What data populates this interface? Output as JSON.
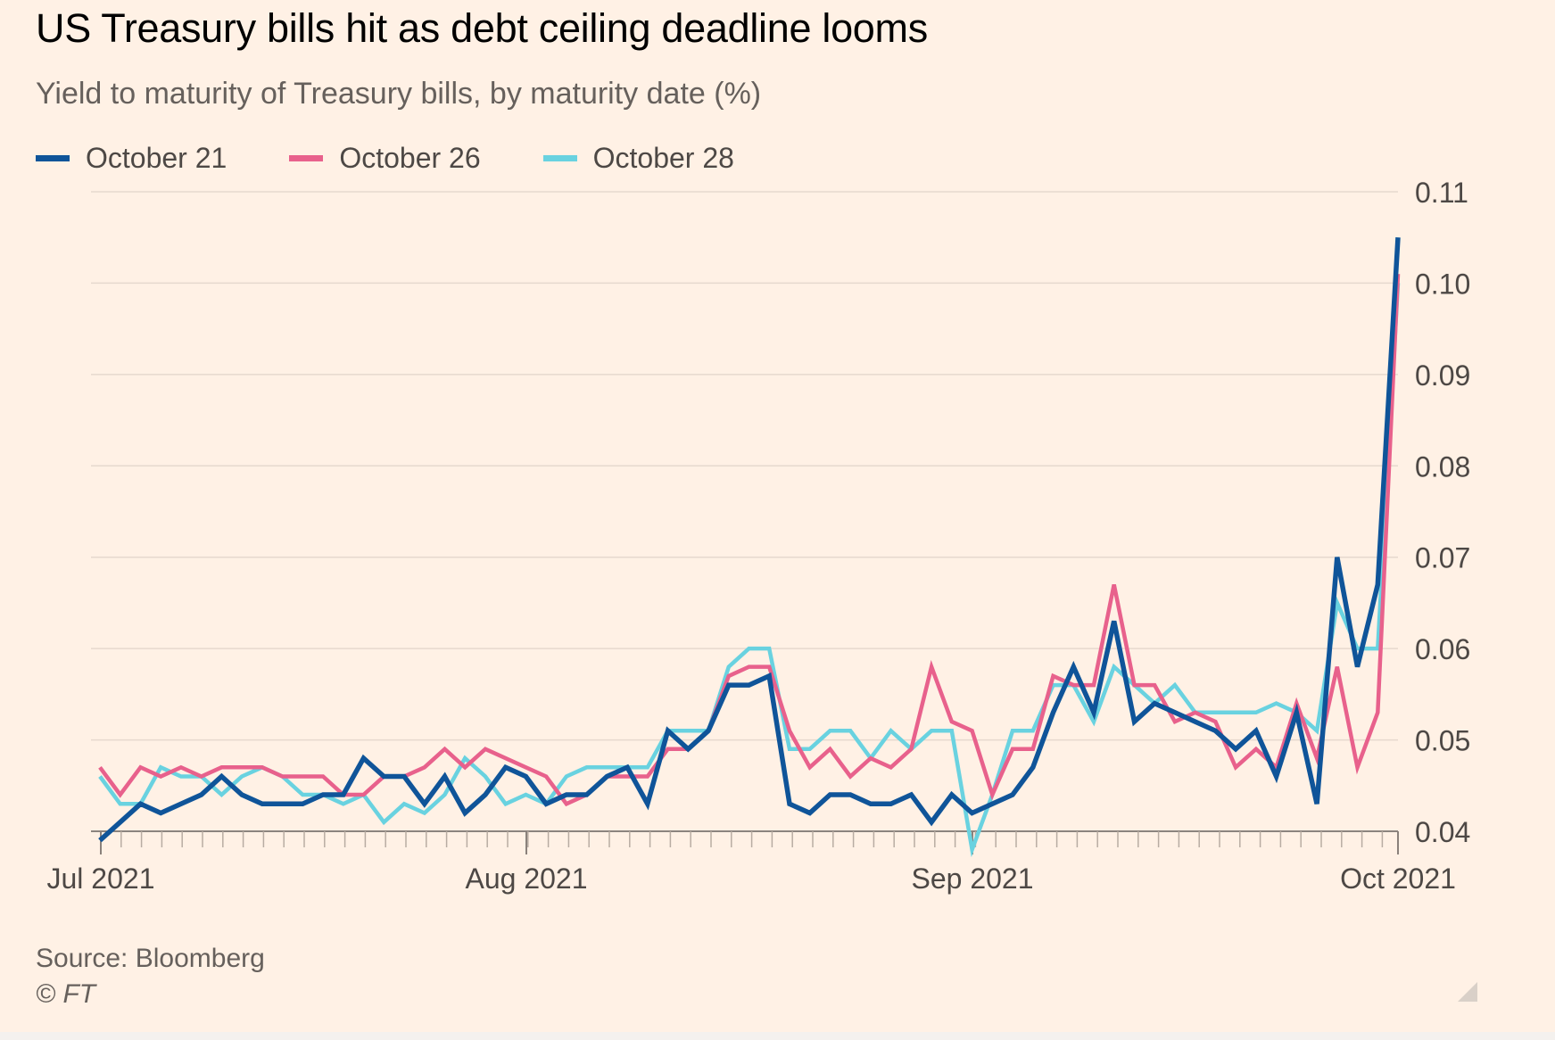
{
  "title": "US Treasury bills hit as debt ceiling deadline looms",
  "subtitle": "Yield to maturity of Treasury bills, by maturity date (%)",
  "source": "Source: Bloomberg",
  "copyright": "© FT",
  "colors": {
    "background": "#fff1e5",
    "october_21": "#0f5499",
    "october_26": "#e8618c",
    "october_28": "#69d2e0",
    "grid": "#e6d9ce",
    "axis": "#66605c"
  },
  "chart_data": {
    "type": "line",
    "title": "US Treasury bills hit as debt ceiling deadline looms",
    "subtitle": "Yield to maturity of Treasury bills, by maturity date (%)",
    "x_ticks": [
      "Jul 2021",
      "Aug 2021",
      "Sep 2021",
      "Oct 2021"
    ],
    "y_ticks": [
      "0.04",
      "0.05",
      "0.06",
      "0.07",
      "0.08",
      "0.09",
      "0.10",
      "0.11"
    ],
    "ylim": [
      0.04,
      0.11
    ],
    "y_axis_side": "right",
    "grid": true,
    "legend_position": "top-left",
    "series": [
      {
        "name": "October 21",
        "color": "#0f5499",
        "values": [
          0.039,
          0.041,
          0.043,
          0.042,
          0.043,
          0.044,
          0.046,
          0.044,
          0.043,
          0.043,
          0.043,
          0.044,
          0.044,
          0.048,
          0.046,
          0.046,
          0.043,
          0.046,
          0.042,
          0.044,
          0.047,
          0.046,
          0.043,
          0.044,
          0.044,
          0.046,
          0.047,
          0.043,
          0.051,
          0.049,
          0.051,
          0.056,
          0.056,
          0.057,
          0.043,
          0.042,
          0.044,
          0.044,
          0.043,
          0.043,
          0.044,
          0.041,
          0.044,
          0.042,
          0.043,
          0.044,
          0.047,
          0.053,
          0.058,
          0.053,
          0.063,
          0.052,
          0.054,
          0.053,
          0.052,
          0.051,
          0.049,
          0.051,
          0.046,
          0.053,
          0.043,
          0.07,
          0.058,
          0.067,
          0.105
        ]
      },
      {
        "name": "October 26",
        "color": "#e8618c",
        "values": [
          0.047,
          0.044,
          0.047,
          0.046,
          0.047,
          0.046,
          0.047,
          0.047,
          0.047,
          0.046,
          0.046,
          0.046,
          0.044,
          0.044,
          0.046,
          0.046,
          0.047,
          0.049,
          0.047,
          0.049,
          0.048,
          0.047,
          0.046,
          0.043,
          0.044,
          0.046,
          0.046,
          0.046,
          0.049,
          0.049,
          0.051,
          0.057,
          0.058,
          0.058,
          0.051,
          0.047,
          0.049,
          0.046,
          0.048,
          0.047,
          0.049,
          0.058,
          0.052,
          0.051,
          0.044,
          0.049,
          0.049,
          0.057,
          0.056,
          0.056,
          0.067,
          0.056,
          0.056,
          0.052,
          0.053,
          0.052,
          0.047,
          0.049,
          0.047,
          0.054,
          0.048,
          0.058,
          0.047,
          0.053,
          0.101
        ]
      },
      {
        "name": "October 28",
        "color": "#69d2e0",
        "values": [
          0.046,
          0.043,
          0.043,
          0.047,
          0.046,
          0.046,
          0.044,
          0.046,
          0.047,
          0.046,
          0.044,
          0.044,
          0.043,
          0.044,
          0.041,
          0.043,
          0.042,
          0.044,
          0.048,
          0.046,
          0.043,
          0.044,
          0.043,
          0.046,
          0.047,
          0.047,
          0.047,
          0.047,
          0.051,
          0.051,
          0.051,
          0.058,
          0.06,
          0.06,
          0.049,
          0.049,
          0.051,
          0.051,
          0.048,
          0.051,
          0.049,
          0.051,
          0.051,
          0.038,
          0.044,
          0.051,
          0.051,
          0.056,
          0.056,
          0.052,
          0.058,
          0.056,
          0.054,
          0.056,
          0.053,
          0.053,
          0.053,
          0.053,
          0.054,
          0.053,
          0.051,
          0.065,
          0.06,
          0.06,
          0.1
        ]
      }
    ]
  }
}
